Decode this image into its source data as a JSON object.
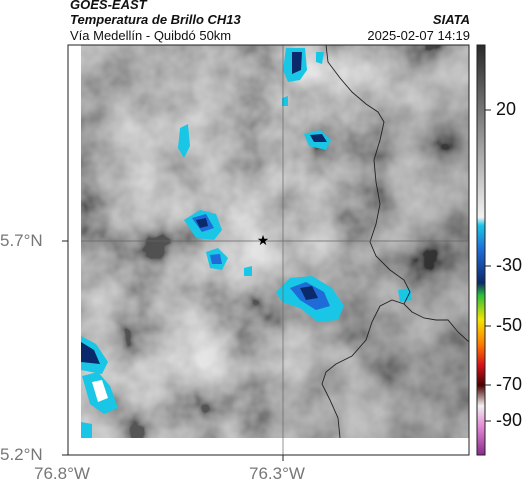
{
  "header": {
    "satellite": "GOES-EAST",
    "product": "Temperatura de Brillo CH13",
    "region": "Vía Medellín - Quibdó 50km",
    "org": "SIATA",
    "datetime": "2025-02-07 14:19"
  },
  "map": {
    "lat_ticks": [
      "5.7°N",
      "5.2°N"
    ],
    "lon_ticks": [
      "76.8°W",
      "76.3°W"
    ],
    "marker": "star-marker"
  },
  "colorbar": {
    "ticks": [
      "20",
      "-30",
      "-50",
      "-70",
      "-90"
    ],
    "colors": {
      "warm_light": "#f4f4f4",
      "warm_dark": "#3a3a3a",
      "cyan": "#19c6e6",
      "blue": "#1f6bd8",
      "navy": "#0b2a6b",
      "green": "#2bbf3a",
      "yellow": "#f2e600",
      "orange": "#ff7a00",
      "red": "#d8141c",
      "dark_red": "#4d0000",
      "pink": "#e38ad6",
      "magenta": "#8a2a8a"
    }
  }
}
